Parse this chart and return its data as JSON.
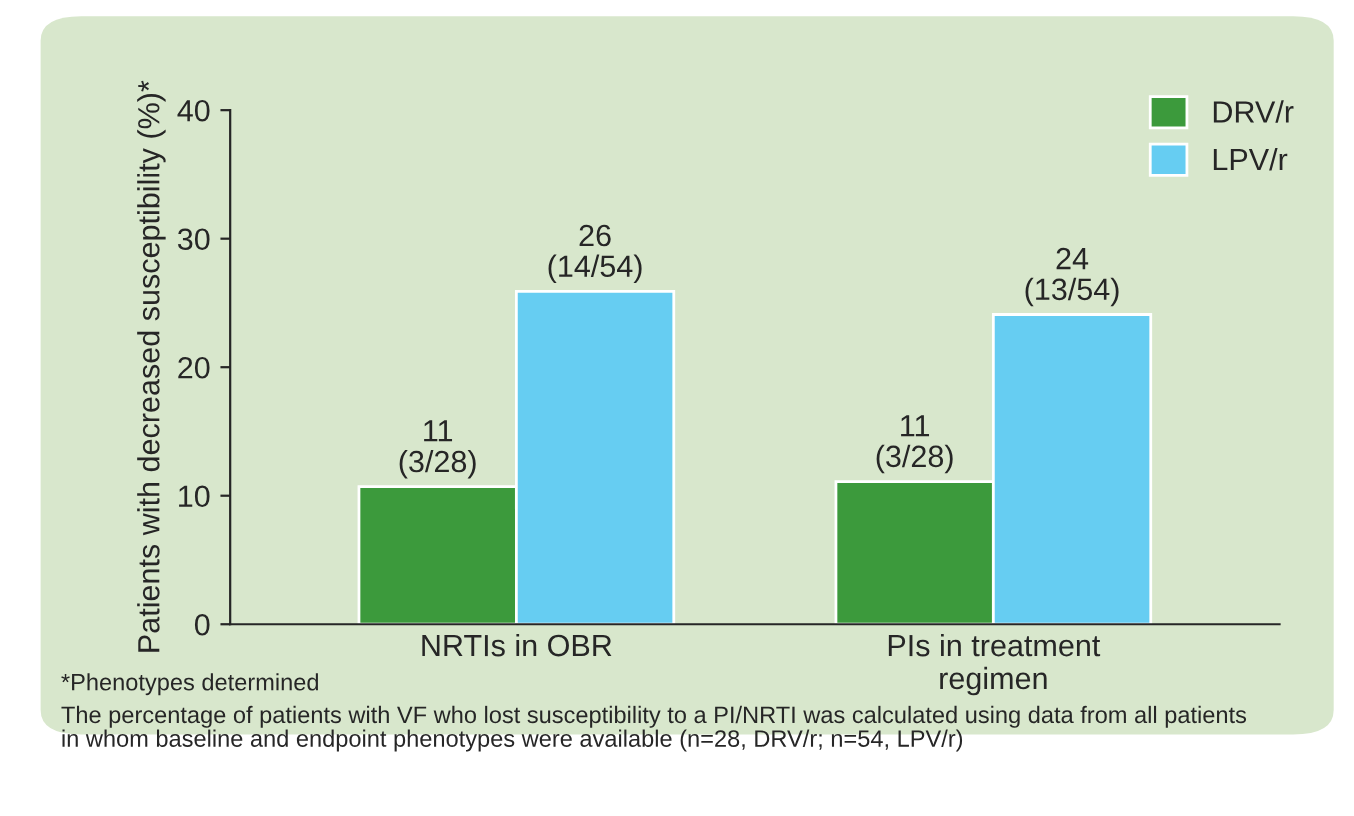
{
  "chart_data": {
    "type": "bar",
    "ylabel": "Patients with decreased susceptibility (%)*",
    "categories": [
      "NRTIs in OBR",
      "PIs in treatment\nregimen"
    ],
    "series": [
      {
        "name": "DRV/r",
        "color": "#3c9a3c",
        "values": [
          10.7,
          11.1
        ],
        "value_labels": [
          "11\n(3/28)",
          "11\n(3/28)"
        ]
      },
      {
        "name": "LPV/r",
        "color": "#66cdf2",
        "values": [
          25.9,
          24.1
        ],
        "value_labels": [
          "26\n(14/54)",
          "24\n(13/54)"
        ]
      }
    ],
    "ylim": [
      0,
      40
    ],
    "yticks": [
      0,
      10,
      20,
      30,
      40
    ],
    "grid": false,
    "legend": "top right",
    "annotations": [
      "*Phenotypes determined",
      "The percentage of patients with VF who lost susceptibility to a PI/NRTI was calculated using data from all patients\nin whom baseline and endpoint phenotypes were available (n=28, DRV/r; n=54, LPV/r)"
    ]
  }
}
